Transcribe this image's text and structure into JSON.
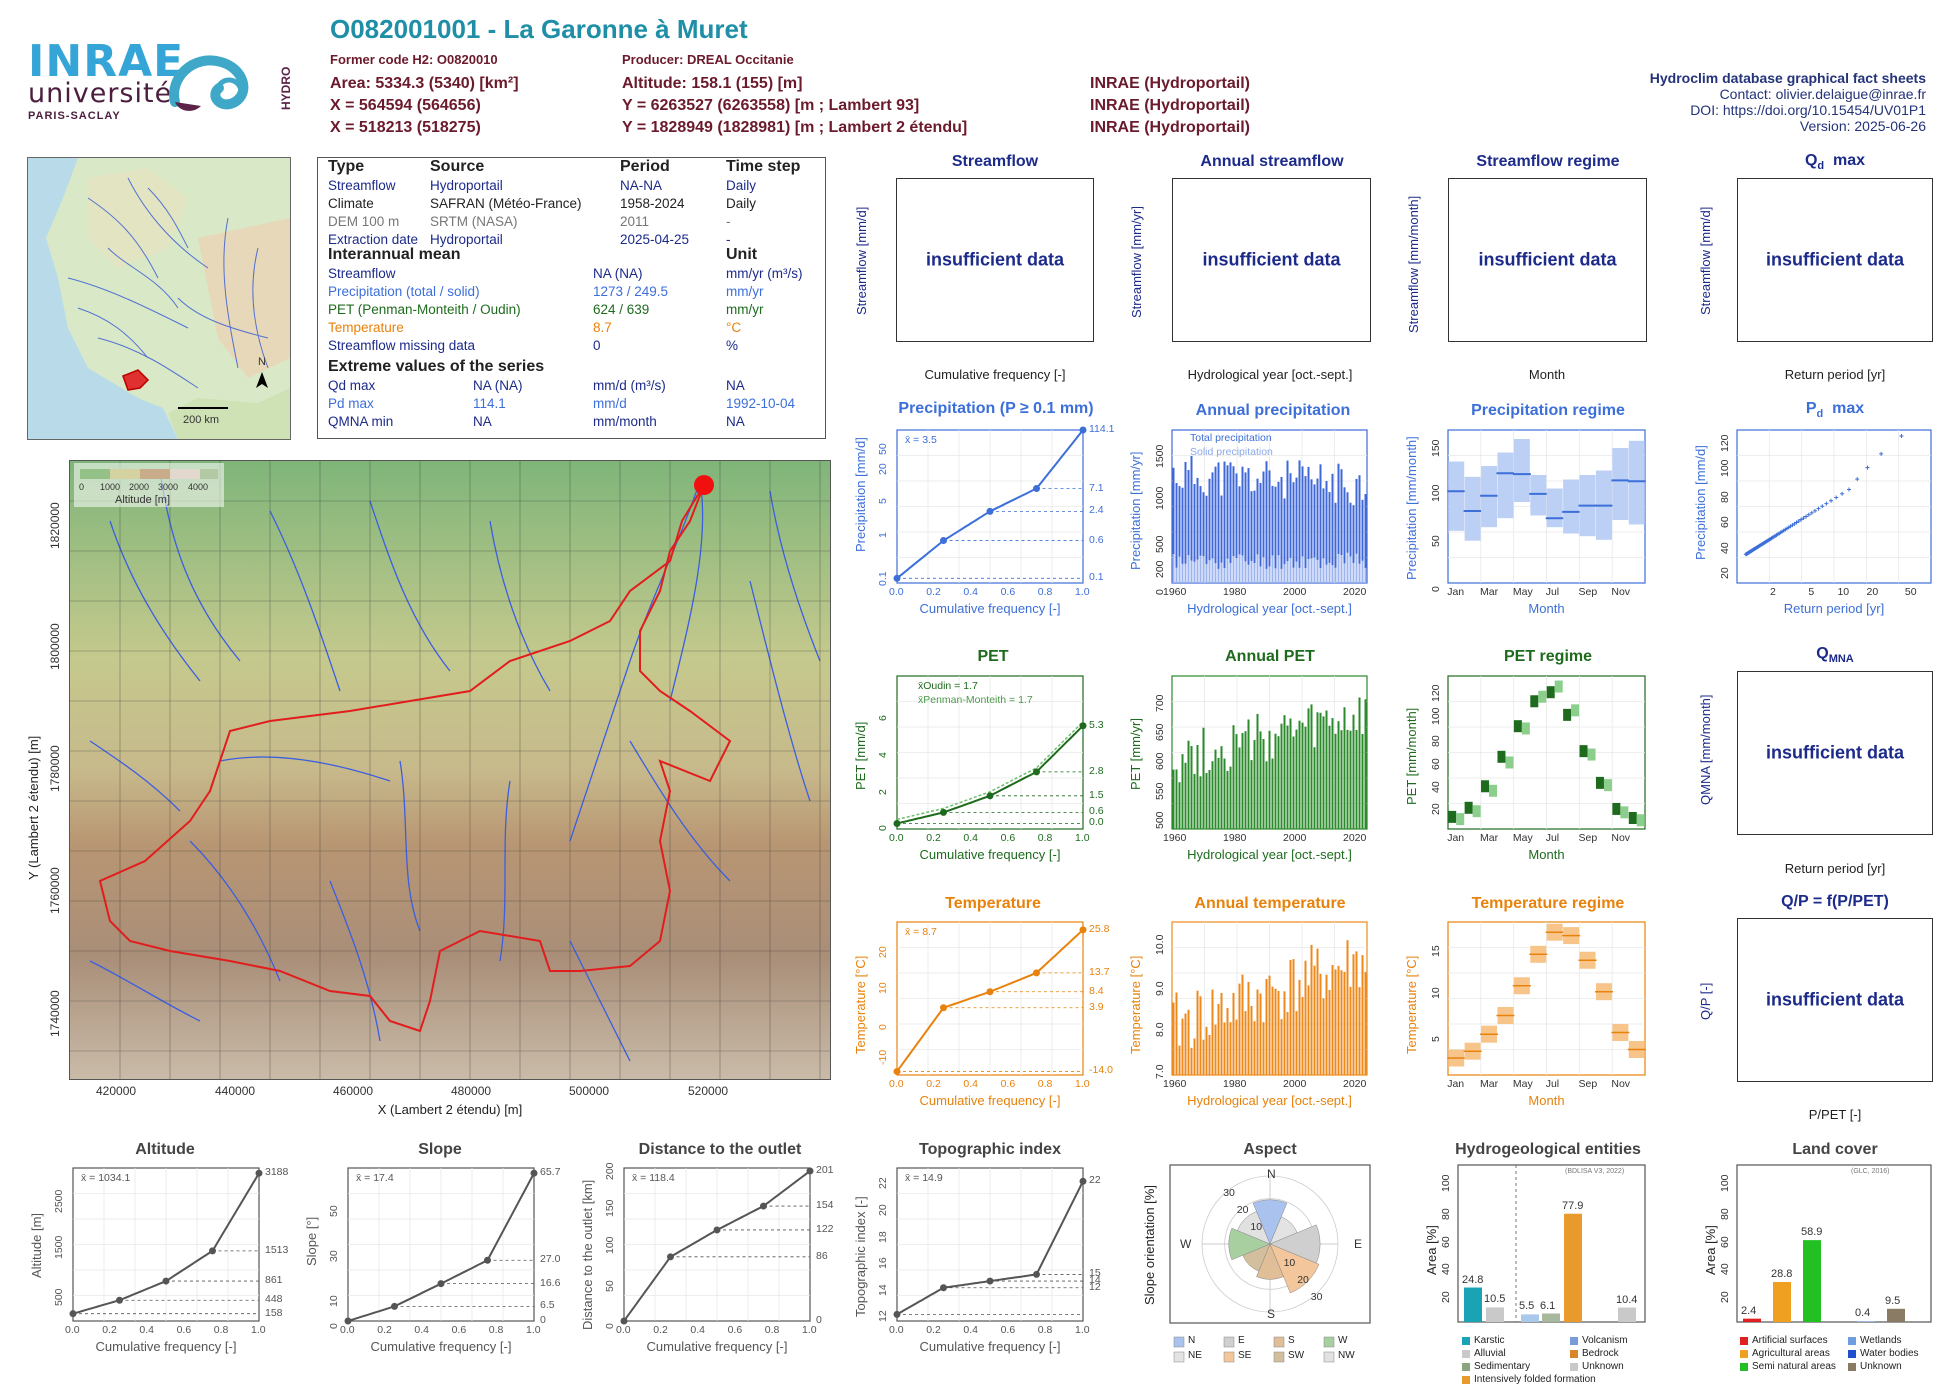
{
  "header": {
    "title": "O082001001 - La Garonne à Muret",
    "former_code": "Former code H2: O0820010",
    "producer": "Producer: DREAL Occitanie",
    "area": "Area: 5334.3 (5340) [km²]",
    "altitude": "Altitude: 158.1 (155) [m]",
    "x93": "X = 564594 (564656)",
    "y93": "Y = 6263527 (6263558) [m ; Lambert 93]",
    "x2e": "X = 518213 (518275)",
    "y2e": "Y = 1828949 (1828981) [m ; Lambert 2 étendu]",
    "src1": "INRAE (Hydroportail)",
    "src2": "INRAE (Hydroportail)",
    "src3": "INRAE (Hydroportail)",
    "db_title": "Hydroclim database graphical fact sheets",
    "contact": "Contact: olivier.delaigue@inrae.fr",
    "doi": "DOI: https://doi.org/10.15454/UV01P1",
    "version": "Version: 2025-06-26"
  },
  "logos": {
    "inrae": "INRAE",
    "universite": "université",
    "paris_saclay": "PARIS-SACLAY",
    "hydro": "HYDRO"
  },
  "info_table": {
    "col_type": "Type",
    "col_source": "Source",
    "col_period": "Period",
    "col_timestep": "Time step",
    "rows": [
      {
        "type": "Streamflow",
        "source": "Hydroportail",
        "period": "NA-NA",
        "step": "Daily",
        "color": "#1c2a8a"
      },
      {
        "type": "Climate",
        "source": "SAFRAN (Météo-France)",
        "period": "1958-2024",
        "step": "Daily",
        "color": "#222222"
      },
      {
        "type": "DEM 100 m",
        "source": "SRTM (NASA)",
        "period": "2011",
        "step": "-",
        "color": "#777777"
      },
      {
        "type": "Extraction date",
        "source": "Hydroportail",
        "period": "2025-04-25",
        "step": "-",
        "color": "#1c2a8a"
      }
    ],
    "interannual_heading": "Interannual mean",
    "unit_heading": "Unit",
    "means": [
      {
        "label": "Streamflow",
        "value": "NA (NA)",
        "unit": "mm/yr (m³/s)",
        "color": "#1c2a8a"
      },
      {
        "label": "Precipitation (total / solid)",
        "value": "1273 / 249.5",
        "unit": "mm/yr",
        "color": "#3d6fd9"
      },
      {
        "label": "PET (Penman-Monteith / Oudin)",
        "value": "624 / 639",
        "unit": "mm/yr",
        "color": "#1e6b1e"
      },
      {
        "label": "Temperature",
        "value": "8.7",
        "unit": "°C",
        "color": "#e8820c"
      },
      {
        "label": "Streamflow missing data",
        "value": "0",
        "unit": "%",
        "color": "#1c2a8a"
      }
    ],
    "extreme_heading": "Extreme values of the series",
    "extremes": [
      {
        "label": "Qd max",
        "value": "NA (NA)",
        "unit": "mm/d (m³/s)",
        "date": "NA",
        "color": "#1c2a8a"
      },
      {
        "label": "Pd max",
        "value": "114.1",
        "unit": "mm/d",
        "date": "1992-10-04",
        "color": "#3d6fd9"
      },
      {
        "label": "QMNA min",
        "value": "NA",
        "unit": "mm/month",
        "date": "NA",
        "color": "#1c2a8a"
      }
    ]
  },
  "overview_map": {
    "scale": "200 km",
    "north": "N"
  },
  "catchment_map": {
    "legend_title": "Altitude [m]",
    "legend_ticks": [
      "0",
      "1000",
      "2000",
      "3000",
      "4000"
    ],
    "x_label": "X (Lambert 2 étendu) [m]",
    "y_label": "Y (Lambert 2 étendu) [m]",
    "x_ticks": [
      "420000",
      "440000",
      "460000",
      "480000",
      "500000",
      "520000"
    ],
    "y_ticks": [
      "1740000",
      "1760000",
      "1780000",
      "1800000",
      "1820000"
    ]
  },
  "panels": {
    "streamflow": {
      "title": "Streamflow",
      "ylabel": "Streamflow [mm/d]",
      "xlabel": "Cumulative frequency [-]",
      "msg": "insufficient data"
    },
    "annual_streamflow": {
      "title": "Annual streamflow",
      "ylabel": "Streamflow [mm/yr]",
      "xlabel": "Hydrological year [oct.-sept.]",
      "msg": "insufficient data"
    },
    "streamflow_regime": {
      "title": "Streamflow regime",
      "ylabel": "Streamflow [mm/month]",
      "xlabel": "Month",
      "msg": "insufficient data"
    },
    "qd_max": {
      "title": "Qd max",
      "ylabel": "Streamflow [mm/d]",
      "xlabel": "Return period [yr]",
      "msg": "insufficient data"
    },
    "precip": {
      "title": "Precipitation (P ≥ 0.1 mm)",
      "ylabel": "Precipitation [mm/d]",
      "xlabel": "Cumulative frequency [-]",
      "mean": "x̄ = 3.5"
    },
    "annual_precip": {
      "title": "Annual precipitation",
      "ylabel": "Precipitation [mm/yr]",
      "xlabel": "Hydrological year [oct.-sept.]",
      "legend_total": "Total precipitation",
      "legend_solid": "Solid precipitation"
    },
    "precip_regime": {
      "title": "Precipitation regime",
      "ylabel": "Precipitation [mm/month]",
      "xlabel": "Month"
    },
    "pd_max": {
      "title": "Pd max",
      "ylabel": "Precipitation [mm/d]",
      "xlabel": "Return period [yr]"
    },
    "pet": {
      "title": "PET",
      "ylabel": "PET [mm/d]",
      "xlabel": "Cumulative frequency [-]",
      "legend_oudin": "x̄Oudin = 1.7",
      "legend_pm": "x̄Penman-Monteith = 1.7"
    },
    "annual_pet": {
      "title": "Annual PET",
      "ylabel": "PET [mm/yr]",
      "xlabel": "Hydrological year [oct.-sept.]"
    },
    "pet_regime": {
      "title": "PET regime",
      "ylabel": "PET [mm/month]",
      "xlabel": "Month"
    },
    "qmna": {
      "title": "QMNA",
      "ylabel": "QMNA [mm/month]",
      "xlabel": "Return period [yr]",
      "msg": "insufficient data"
    },
    "temp": {
      "title": "Temperature",
      "ylabel": "Temperature [°C]",
      "xlabel": "Cumulative frequency [-]",
      "mean": "x̄ = 8.7"
    },
    "annual_temp": {
      "title": "Annual temperature",
      "ylabel": "Temperature [°C]",
      "xlabel": "Hydrological year [oct.-sept.]"
    },
    "temp_regime": {
      "title": "Temperature regime",
      "ylabel": "Temperature [°C]",
      "xlabel": "Month"
    },
    "qp": {
      "title": "Q/P = f(P/PET)",
      "ylabel": "Q/P [-]",
      "xlabel": "P/PET [-]",
      "msg": "insufficient data"
    },
    "altitude": {
      "title": "Altitude",
      "ylabel": "Altitude [m]",
      "xlabel": "Cumulative frequency [-]",
      "mean": "x̄ = 1034.1"
    },
    "slope": {
      "title": "Slope",
      "ylabel": "Slope [°]",
      "xlabel": "Cumulative frequency [-]",
      "mean": "x̄ = 17.4"
    },
    "distance": {
      "title": "Distance to the outlet",
      "ylabel": "Distance to the outlet [km]",
      "xlabel": "Cumulative frequency [-]",
      "mean": "x̄ = 118.4"
    },
    "topo": {
      "title": "Topographic index",
      "ylabel": "Topographic index [-]",
      "xlabel": "Cumulative frequency [-]",
      "mean": "x̄ = 14.9"
    },
    "aspect": {
      "title": "Aspect",
      "ylabel": "Slope orientation [%]"
    },
    "hydrogeo": {
      "title": "Hydrogeological entities",
      "ylabel": "Area [%]",
      "source": "(BDLISA V3, 2022)"
    },
    "landcover": {
      "title": "Land cover",
      "ylabel": "Area [%]",
      "source": "(GLC, 2016)"
    }
  },
  "chart_data": [
    {
      "type": "line",
      "id": "precip",
      "x": [
        0,
        0.25,
        0.5,
        0.75,
        1
      ],
      "values": [
        0.1,
        0.6,
        2.4,
        7.1,
        114.1
      ],
      "y_tick_labels": [
        "0.1",
        "1",
        "5",
        "20",
        "50"
      ],
      "right_labels": [
        "114.1",
        "7.1",
        "2.4",
        "0.6",
        "0.1"
      ],
      "x_tick_labels": [
        "0.0",
        "0.2",
        "0.4",
        "0.6",
        "0.8",
        "1.0"
      ],
      "yscale": "log"
    },
    {
      "type": "bar",
      "id": "annual_precip",
      "x_tick_labels": [
        "1960",
        "1980",
        "2000",
        "2020"
      ],
      "y_tick_labels": [
        "0",
        "200",
        "500",
        "1000",
        "1500"
      ],
      "ylim": [
        0,
        1800
      ],
      "years": [
        1959,
        2024
      ]
    },
    {
      "type": "box",
      "id": "precip_regime",
      "categories": [
        "Jan",
        "Feb",
        "Mar",
        "Apr",
        "May",
        "Jun",
        "Jul",
        "Aug",
        "Sep",
        "Oct",
        "Nov",
        "Dec"
      ],
      "x_tick_labels": [
        "Jan",
        "Mar",
        "May",
        "Jul",
        "Sep",
        "Nov"
      ],
      "median": [
        102,
        80,
        97,
        122,
        121,
        99,
        72,
        79,
        86,
        86,
        114,
        113
      ],
      "q1": [
        58,
        47,
        62,
        72,
        90,
        75,
        62,
        55,
        52,
        48,
        70,
        65
      ],
      "q3": [
        135,
        118,
        130,
        145,
        160,
        120,
        105,
        115,
        120,
        125,
        150,
        158
      ],
      "y_tick_labels": [
        "0",
        "50",
        "100",
        "150"
      ],
      "ylim": [
        0,
        170
      ]
    },
    {
      "type": "scatter",
      "id": "pd_max",
      "x_tick_labels": [
        "2",
        "5",
        "10",
        "20",
        "50"
      ],
      "y_tick_labels": [
        "20",
        "40",
        "60",
        "80",
        "100",
        "120"
      ],
      "ylim": [
        10,
        130
      ]
    },
    {
      "type": "line",
      "id": "pet",
      "x": [
        0,
        0.25,
        0.5,
        0.75,
        1
      ],
      "values": [
        0.0,
        0.6,
        1.5,
        2.8,
        5.3
      ],
      "y_tick_labels": [
        "0",
        "2",
        "4",
        "6"
      ],
      "right_labels": [
        "5.3",
        "2.8",
        "1.5",
        "0.6",
        "0.0"
      ],
      "x_tick_labels": [
        "0.0",
        "0.2",
        "0.4",
        "0.6",
        "0.8",
        "1.0"
      ],
      "ylim": [
        0,
        8
      ]
    },
    {
      "type": "bar",
      "id": "annual_pet",
      "x_tick_labels": [
        "1960",
        "1980",
        "2000",
        "2020"
      ],
      "y_tick_labels": [
        "500",
        "550",
        "600",
        "650",
        "700"
      ],
      "ylim": [
        480,
        740
      ]
    },
    {
      "type": "box",
      "id": "pet_regime",
      "categories": [
        "Jan",
        "Feb",
        "Mar",
        "Apr",
        "May",
        "Jun",
        "Jul",
        "Aug",
        "Sep",
        "Oct",
        "Nov",
        "Dec"
      ],
      "x_tick_labels": [
        "Jan",
        "Mar",
        "May",
        "Jul",
        "Sep",
        "Nov"
      ],
      "oudin": [
        10,
        18,
        37,
        63,
        90,
        112,
        120,
        100,
        68,
        40,
        17,
        9
      ],
      "pm": [
        8,
        15,
        33,
        58,
        88,
        116,
        125,
        104,
        65,
        38,
        14,
        7
      ],
      "y_tick_labels": [
        "20",
        "40",
        "60",
        "80",
        "100",
        "120"
      ],
      "ylim": [
        0,
        135
      ]
    },
    {
      "type": "line",
      "id": "temp",
      "x": [
        0,
        0.25,
        0.5,
        0.75,
        1
      ],
      "values": [
        -14.0,
        3.9,
        8.4,
        13.7,
        25.8
      ],
      "y_tick_labels": [
        "-10",
        "0",
        "10",
        "20"
      ],
      "right_labels": [
        "25.8",
        "13.7",
        "8.4",
        "3.9",
        "-14.0"
      ],
      "x_tick_labels": [
        "0.0",
        "0.2",
        "0.4",
        "0.6",
        "0.8",
        "1.0"
      ],
      "ylim": [
        -15,
        28
      ]
    },
    {
      "type": "bar",
      "id": "annual_temp",
      "x_tick_labels": [
        "1960",
        "1980",
        "2000",
        "2020"
      ],
      "y_tick_labels": [
        "7.0",
        "8.0",
        "9.0",
        "10.0"
      ],
      "ylim": [
        6.8,
        10.5
      ]
    },
    {
      "type": "box",
      "id": "temp_regime",
      "categories": [
        "Jan",
        "Feb",
        "Mar",
        "Apr",
        "May",
        "Jun",
        "Jul",
        "Aug",
        "Sep",
        "Oct",
        "Nov",
        "Dec"
      ],
      "x_tick_labels": [
        "Jan",
        "Mar",
        "May",
        "Jul",
        "Sep",
        "Nov"
      ],
      "median": [
        2.0,
        2.8,
        4.8,
        7.0,
        10.5,
        14.2,
        16.8,
        16.4,
        13.5,
        9.8,
        5.0,
        3.0
      ],
      "y_tick_labels": [
        "5",
        "10",
        "15"
      ],
      "ylim": [
        0,
        18
      ]
    },
    {
      "type": "line",
      "id": "altitude",
      "x": [
        0,
        0.25,
        0.5,
        0.75,
        1
      ],
      "values": [
        158,
        448,
        861,
        1513,
        3188
      ],
      "y_tick_labels": [
        "500",
        "1500",
        "2500"
      ],
      "right_labels": [
        "3188",
        "1513",
        "861",
        "448",
        "158"
      ],
      "x_tick_labels": [
        "0.0",
        "0.2",
        "0.4",
        "0.6",
        "0.8",
        "1.0"
      ],
      "ylim": [
        0,
        3300
      ]
    },
    {
      "type": "line",
      "id": "slope",
      "x": [
        0,
        0.25,
        0.5,
        0.75,
        1
      ],
      "values": [
        0,
        6.5,
        16.6,
        27.0,
        65.7
      ],
      "y_tick_labels": [
        "0",
        "10",
        "30",
        "50"
      ],
      "right_labels": [
        "65.7",
        "27.0",
        "16.6",
        "6.5",
        "0"
      ],
      "x_tick_labels": [
        "0.0",
        "0.2",
        "0.4",
        "0.6",
        "0.8",
        "1.0"
      ],
      "ylim": [
        0,
        68
      ]
    },
    {
      "type": "line",
      "id": "distance",
      "x": [
        0,
        0.25,
        0.5,
        0.75,
        1
      ],
      "values": [
        0,
        86,
        122,
        154,
        201
      ],
      "y_tick_labels": [
        "0",
        "50",
        "100",
        "150",
        "200"
      ],
      "right_labels": [
        "201",
        "154",
        "122",
        "86",
        "0"
      ],
      "x_tick_labels": [
        "0.0",
        "0.2",
        "0.4",
        "0.6",
        "0.8",
        "1.0"
      ],
      "ylim": [
        0,
        205
      ]
    },
    {
      "type": "line",
      "id": "topo",
      "x": [
        0,
        0.25,
        0.5,
        0.75,
        1
      ],
      "values": [
        12,
        14,
        14.5,
        15,
        22
      ],
      "y_tick_labels": [
        "12",
        "14",
        "16",
        "18",
        "20",
        "22"
      ],
      "right_labels": [
        "22",
        "15",
        "14",
        "12"
      ],
      "x_tick_labels": [
        "0.0",
        "0.2",
        "0.4",
        "0.6",
        "0.8",
        "1.0"
      ],
      "ylim": [
        11.5,
        23
      ]
    },
    {
      "type": "pie",
      "id": "aspect",
      "categories": [
        "N",
        "NE",
        "E",
        "SE",
        "S",
        "SW",
        "W",
        "NW"
      ],
      "values": [
        15,
        10,
        17,
        18,
        12,
        10,
        14,
        12
      ],
      "ring_labels": [
        "10",
        "20",
        "30"
      ],
      "legend": [
        "N",
        "NE",
        "E",
        "SE",
        "S",
        "SW",
        "W",
        "NW"
      ]
    },
    {
      "type": "bar",
      "id": "hydrogeo",
      "categories": [
        "Karstic",
        "Alluvial",
        "Sedimentary",
        "Intensively folded formation",
        "Volcanism",
        "Bedrock",
        "Unknown"
      ],
      "values": [
        24.8,
        10.5,
        5.5,
        6.1,
        77.9,
        10.4
      ],
      "labels": [
        "24.8",
        "10.5",
        "5.5",
        "6.1",
        "77.9",
        "10.4"
      ],
      "y_tick_labels": [
        "0",
        "20",
        "40",
        "60",
        "80",
        "100"
      ],
      "ylim": [
        0,
        100
      ]
    },
    {
      "type": "bar",
      "id": "landcover",
      "categories": [
        "Artificial surfaces",
        "Agricultural areas",
        "Semi natural areas",
        "Wetlands",
        "Water bodies",
        "Unknown"
      ],
      "values": [
        2.4,
        28.8,
        58.9,
        0.4,
        9.5
      ],
      "labels": [
        "2.4",
        "28.8",
        "58.9",
        "0.4",
        "9.5"
      ],
      "y_tick_labels": [
        "0",
        "20",
        "40",
        "60",
        "80",
        "100"
      ],
      "ylim": [
        0,
        100
      ]
    }
  ]
}
